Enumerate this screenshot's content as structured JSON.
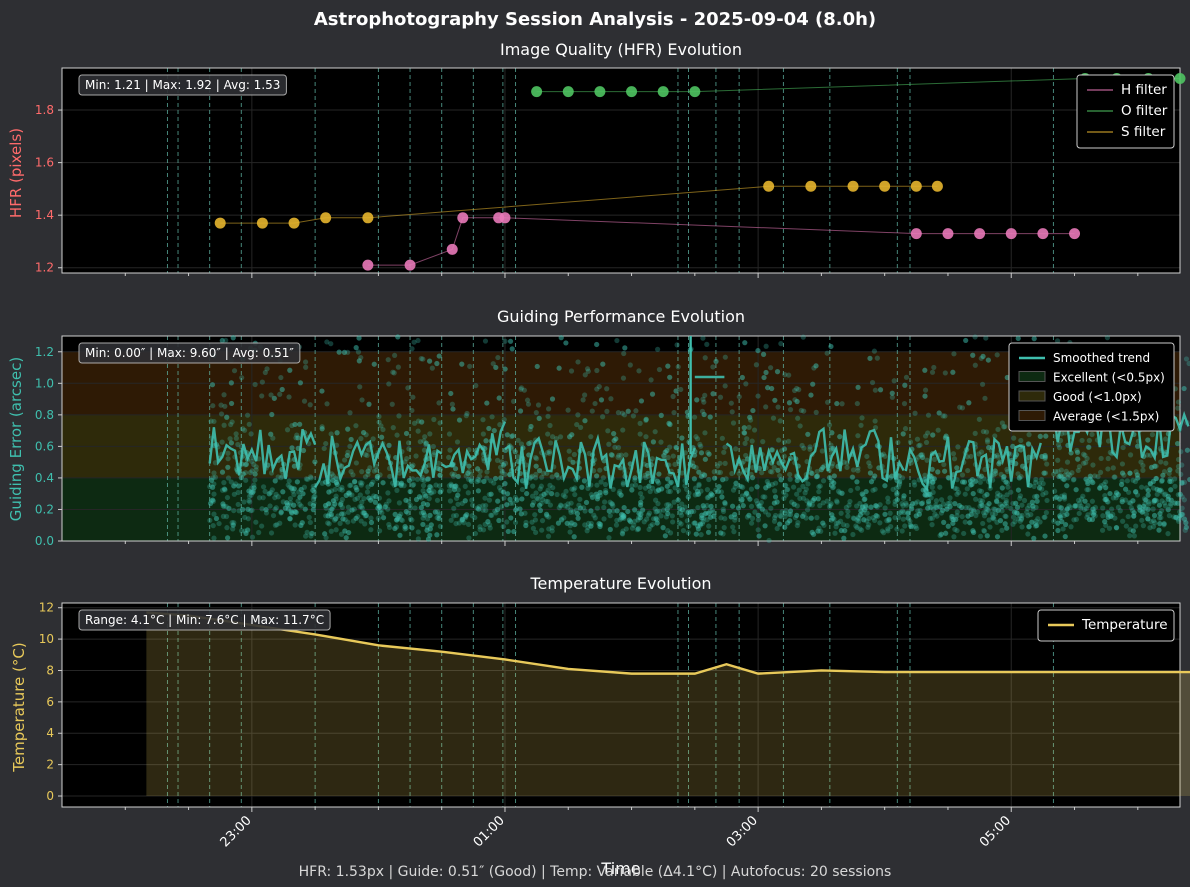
{
  "figure": {
    "title": "Astrophotography Session Analysis - 2025-09-04 (8.0h)",
    "footer": "HFR: 1.53px | Guide: 0.51″ (Good) | Temp: Variable (Δ4.1°C) | Autofocus: 20 sessions",
    "xlabel": "Time",
    "xticks": [
      "23:00",
      "01:00",
      "03:00",
      "05:00"
    ],
    "colors": {
      "figure_bg": "#2e2f33",
      "axes_bg": "#000000",
      "autofocus_line": "#5fb3a3"
    }
  },
  "chart_data": [
    {
      "type": "scatter",
      "title": "Image Quality (HFR) Evolution",
      "ylabel": "HFR (pixels)",
      "ylim": [
        1.18,
        1.96
      ],
      "yticks": [
        1.2,
        1.4,
        1.6,
        1.8
      ],
      "grid": true,
      "legend_position": "top-right",
      "stats": "Min: 1.21 | Max: 1.92 | Avg: 1.53",
      "series": [
        {
          "name": "H filter",
          "color": "#e879b8",
          "points": [
            [
              "23:55",
              1.21
            ],
            [
              "00:15",
              1.21
            ],
            [
              "00:35",
              1.27
            ],
            [
              "00:40",
              1.39
            ],
            [
              "00:57",
              1.39
            ],
            [
              "01:00",
              1.39
            ],
            [
              "04:15",
              1.33
            ],
            [
              "04:30",
              1.33
            ],
            [
              "04:45",
              1.33
            ],
            [
              "05:00",
              1.33
            ],
            [
              "05:15",
              1.33
            ],
            [
              "05:30",
              1.33
            ]
          ]
        },
        {
          "name": "O filter",
          "color": "#4fc462",
          "points": [
            [
              "01:15",
              1.87
            ],
            [
              "01:30",
              1.87
            ],
            [
              "01:45",
              1.87
            ],
            [
              "02:00",
              1.87
            ],
            [
              "02:15",
              1.87
            ],
            [
              "02:30",
              1.87
            ],
            [
              "05:35",
              1.92
            ],
            [
              "05:50",
              1.92
            ],
            [
              "06:05",
              1.92
            ],
            [
              "06:20",
              1.92
            ]
          ]
        },
        {
          "name": "S filter",
          "color": "#e6b52e",
          "points": [
            [
              "22:45",
              1.37
            ],
            [
              "23:05",
              1.37
            ],
            [
              "23:20",
              1.37
            ],
            [
              "23:35",
              1.39
            ],
            [
              "23:55",
              1.39
            ],
            [
              "03:05",
              1.51
            ],
            [
              "03:25",
              1.51
            ],
            [
              "03:45",
              1.51
            ],
            [
              "04:00",
              1.51
            ],
            [
              "04:15",
              1.51
            ],
            [
              "04:25",
              1.51
            ]
          ]
        }
      ]
    },
    {
      "type": "scatter",
      "title": "Guiding Performance Evolution",
      "ylabel": "Guiding Error (arcsec)",
      "ylim": [
        0,
        1.3
      ],
      "yticks": [
        0.0,
        0.2,
        0.4,
        0.6,
        0.8,
        1.0,
        1.2
      ],
      "grid": true,
      "legend_position": "top-right",
      "stats": "Min: 0.00″ | Max: 9.60″ | Avg: 0.51″",
      "series": [
        {
          "name": "Smoothed trend",
          "color": "#3fbfae"
        },
        {
          "name": "Excellent (<0.5px)",
          "color": "#0d2a12",
          "range": [
            0,
            0.4
          ]
        },
        {
          "name": "Good (<1.0px)",
          "color": "#2e2a0a",
          "range": [
            0.4,
            0.8
          ]
        },
        {
          "name": "Average (<1.5px)",
          "color": "#2e1a05",
          "range": [
            0.8,
            1.2
          ]
        }
      ],
      "trend_segments": [
        {
          "start": "22:40",
          "end": "23:30",
          "level": 0.55
        },
        {
          "start": "23:30",
          "end": "00:30",
          "level": 0.5
        },
        {
          "start": "00:30",
          "end": "01:00",
          "level": 0.6
        },
        {
          "start": "01:00",
          "end": "02:30",
          "level": 0.5
        },
        {
          "start": "02:30",
          "end": "02:45",
          "level": 1.04
        },
        {
          "start": "02:45",
          "end": "03:15",
          "level": 0.55
        },
        {
          "start": "03:15",
          "end": "04:10",
          "level": 0.55
        },
        {
          "start": "04:10",
          "end": "05:15",
          "level": 0.5
        },
        {
          "start": "05:20",
          "end": "06:25",
          "level": 0.7
        }
      ]
    },
    {
      "type": "area",
      "title": "Temperature Evolution",
      "ylabel": "Temperature (°C)",
      "ylim": [
        -0.7,
        12.3
      ],
      "yticks": [
        0,
        2,
        4,
        6,
        8,
        10,
        12
      ],
      "grid": true,
      "legend_position": "top-right",
      "stats": "Range: 4.1°C | Min: 7.6°C | Max: 11.7°C",
      "series": [
        {
          "name": "Temperature",
          "color": "#e8c95a",
          "points": [
            [
              "22:10",
              11.7
            ],
            [
              "22:30",
              11.5
            ],
            [
              "23:00",
              10.9
            ],
            [
              "23:30",
              10.3
            ],
            [
              "00:00",
              9.6
            ],
            [
              "00:30",
              9.2
            ],
            [
              "01:00",
              8.7
            ],
            [
              "01:30",
              8.1
            ],
            [
              "02:00",
              7.8
            ],
            [
              "02:30",
              7.8
            ],
            [
              "02:45",
              8.4
            ],
            [
              "03:00",
              7.8
            ],
            [
              "03:30",
              8.0
            ],
            [
              "04:00",
              7.9
            ],
            [
              "04:30",
              7.9
            ],
            [
              "05:00",
              7.9
            ],
            [
              "05:30",
              7.9
            ],
            [
              "06:00",
              7.9
            ],
            [
              "06:25",
              7.9
            ]
          ]
        }
      ]
    }
  ],
  "autofocus_times": [
    "22:20",
    "22:25",
    "22:40",
    "22:55",
    "23:30",
    "00:00",
    "00:15",
    "00:30",
    "00:45",
    "00:59",
    "01:05",
    "02:22",
    "02:27",
    "02:40",
    "02:51",
    "03:12",
    "03:34",
    "04:06",
    "04:12",
    "05:20"
  ]
}
